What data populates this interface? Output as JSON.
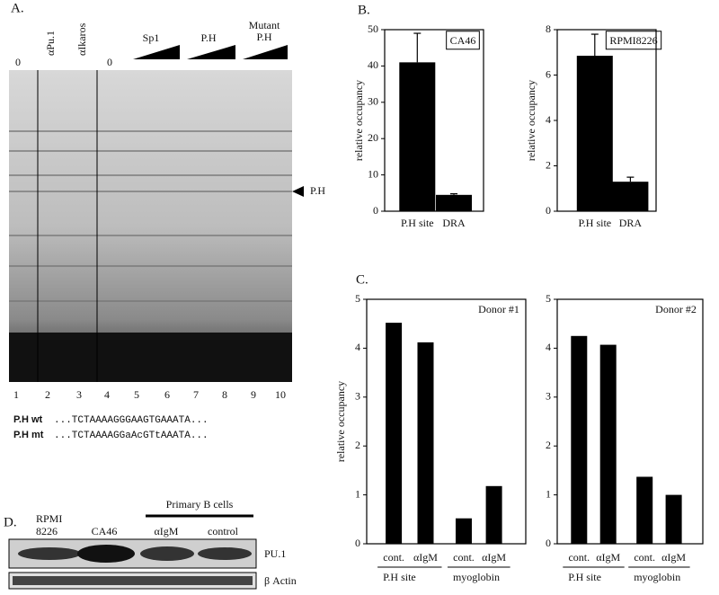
{
  "panel_labels": [
    "A.",
    "B.",
    "C.",
    "D."
  ],
  "gel": {
    "lane_labels": [
      "0",
      "αPu.1",
      "αIkaros",
      "0",
      "Sp1",
      "P.H",
      "Mutant",
      "P.H"
    ],
    "lane_numbers": [
      "1",
      "2",
      "3",
      "4",
      "5",
      "6",
      "7",
      "8",
      "9",
      "10"
    ],
    "band_label": "P.H",
    "sequences": [
      {
        "name": "P.H wt",
        "seq": "...TCTAAAAGGGAAGTGAAATA..."
      },
      {
        "name": "P.H mt",
        "seq": "...TCTAAAAGGaAcGTtAAATA..."
      }
    ]
  },
  "western": {
    "lanes": [
      "RPMI",
      "8226",
      "CA46",
      "αIgM",
      "control"
    ],
    "group": "Primary B cells",
    "rows": [
      "PU.1",
      "β Actin"
    ]
  },
  "chart_data": [
    {
      "type": "bar",
      "title": "CA46",
      "y_label": "relative occupancy",
      "categories": [
        "P.H site",
        "DRA"
      ],
      "series": [
        {
          "values": [
            41,
            4.5
          ],
          "errors": [
            8,
            0.3
          ],
          "color": "#000000"
        }
      ],
      "ylim": [
        0,
        50
      ],
      "yticks": [
        0,
        10,
        20,
        30,
        40,
        50
      ]
    },
    {
      "type": "bar",
      "title": "RPMI8226",
      "y_label": "relative occupancy",
      "categories": [
        "P.H site",
        "DRA"
      ],
      "series": [
        {
          "values": [
            6.85,
            1.3
          ],
          "errors": [
            0.95,
            0.2
          ],
          "color": "#000000"
        }
      ],
      "ylim": [
        0,
        8
      ],
      "yticks": [
        0,
        2,
        4,
        6,
        8
      ]
    },
    {
      "type": "bar",
      "title": "Donor #1",
      "y_label": "relative occupancy",
      "categories": [
        "cont.",
        "αIgM",
        "cont.",
        "αIgM"
      ],
      "groups": [
        "P.H site",
        "myoglobin"
      ],
      "series": [
        {
          "values": [
            4.52,
            4.12,
            0.52,
            1.18
          ],
          "color": "#000000"
        }
      ],
      "ylim": [
        0,
        5
      ],
      "yticks": [
        0,
        1,
        2,
        3,
        4,
        5
      ]
    },
    {
      "type": "bar",
      "title": "Donor #2",
      "categories": [
        "cont.",
        "αIgM",
        "cont.",
        "αIgM"
      ],
      "groups": [
        "P.H site",
        "myoglobin"
      ],
      "series": [
        {
          "values": [
            4.25,
            4.07,
            1.37,
            1.0
          ],
          "color": "#000000"
        }
      ],
      "ylim": [
        0,
        5
      ],
      "yticks": [
        0,
        1,
        2,
        3,
        4,
        5
      ]
    }
  ]
}
